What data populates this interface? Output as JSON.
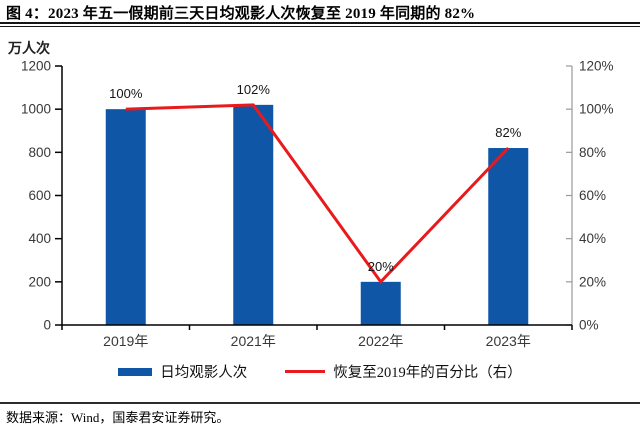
{
  "title": "图 4：2023 年五一假期前三天日均观影人次恢复至 2019 年同期的 82%",
  "source": "数据来源：Wind，国泰君安证券研究。",
  "chart_data": {
    "type": "bar",
    "subtype": "bar+line-dual-axis",
    "categories": [
      "2019年",
      "2021年",
      "2022年",
      "2023年"
    ],
    "series": [
      {
        "name": "日均观影人次",
        "type": "bar",
        "axis": "left",
        "values": [
          1000,
          1020,
          200,
          820
        ],
        "color": "#0F57A6"
      },
      {
        "name": "恢复至2019年的百分比（右）",
        "type": "line",
        "axis": "right",
        "values": [
          100,
          102,
          20,
          82
        ],
        "labels": [
          "100%",
          "102%",
          "20%",
          "82%"
        ],
        "color": "#E9191C"
      }
    ],
    "left_axis": {
      "label": "万人次",
      "min": 0,
      "max": 1200,
      "step": 200
    },
    "right_axis": {
      "min": 0,
      "max": 120,
      "step": 20,
      "suffix": "%"
    },
    "grid": false,
    "legend_position": "bottom"
  }
}
